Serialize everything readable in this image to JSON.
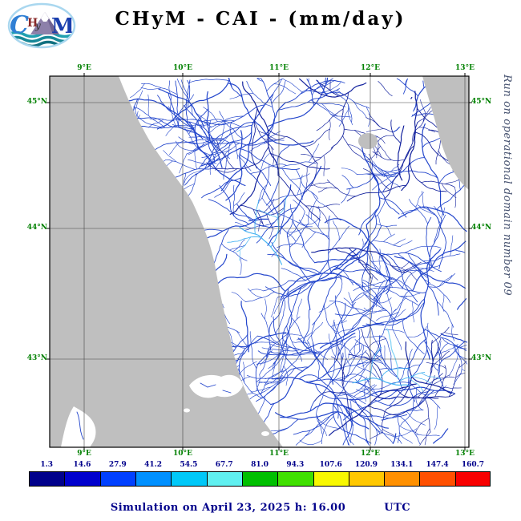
{
  "header": {
    "title": "CHyM - CAI - (mm/day)"
  },
  "logo": {
    "letters": [
      "C",
      "H",
      "y",
      "M"
    ]
  },
  "map": {
    "right_caption": "Run on operational domain number 09",
    "lon_labels": [
      "9°E",
      "10°E",
      "11°E",
      "12°E",
      "13°E"
    ],
    "lat_labels": [
      "45°N",
      "44°N",
      "43°N"
    ]
  },
  "colorbar": {
    "tick_labels": [
      "1.3",
      "14.6",
      "27.9",
      "41.2",
      "54.5",
      "67.7",
      "81.0",
      "94.3",
      "107.6",
      "120.9",
      "134.1",
      "147.4",
      "160.7"
    ],
    "colors": [
      "#00008b",
      "#0000cd",
      "#0040ff",
      "#0090ff",
      "#00c8f8",
      "#60f0f0",
      "#00c000",
      "#40e000",
      "#f8f800",
      "#ffc800",
      "#ff9000",
      "#ff5000",
      "#f80000"
    ]
  },
  "footer": {
    "text": "Simulation on April 23, 2025 h: 16.00",
    "utc": "UTC"
  },
  "theme": {
    "sea": "#bfbfbf",
    "land": "#ffffff",
    "river": "#2346cc",
    "river_dark": "#14239e",
    "river_light": "#49b4f2",
    "axis_label_color": "#008000",
    "footer_color": "#00008b"
  }
}
